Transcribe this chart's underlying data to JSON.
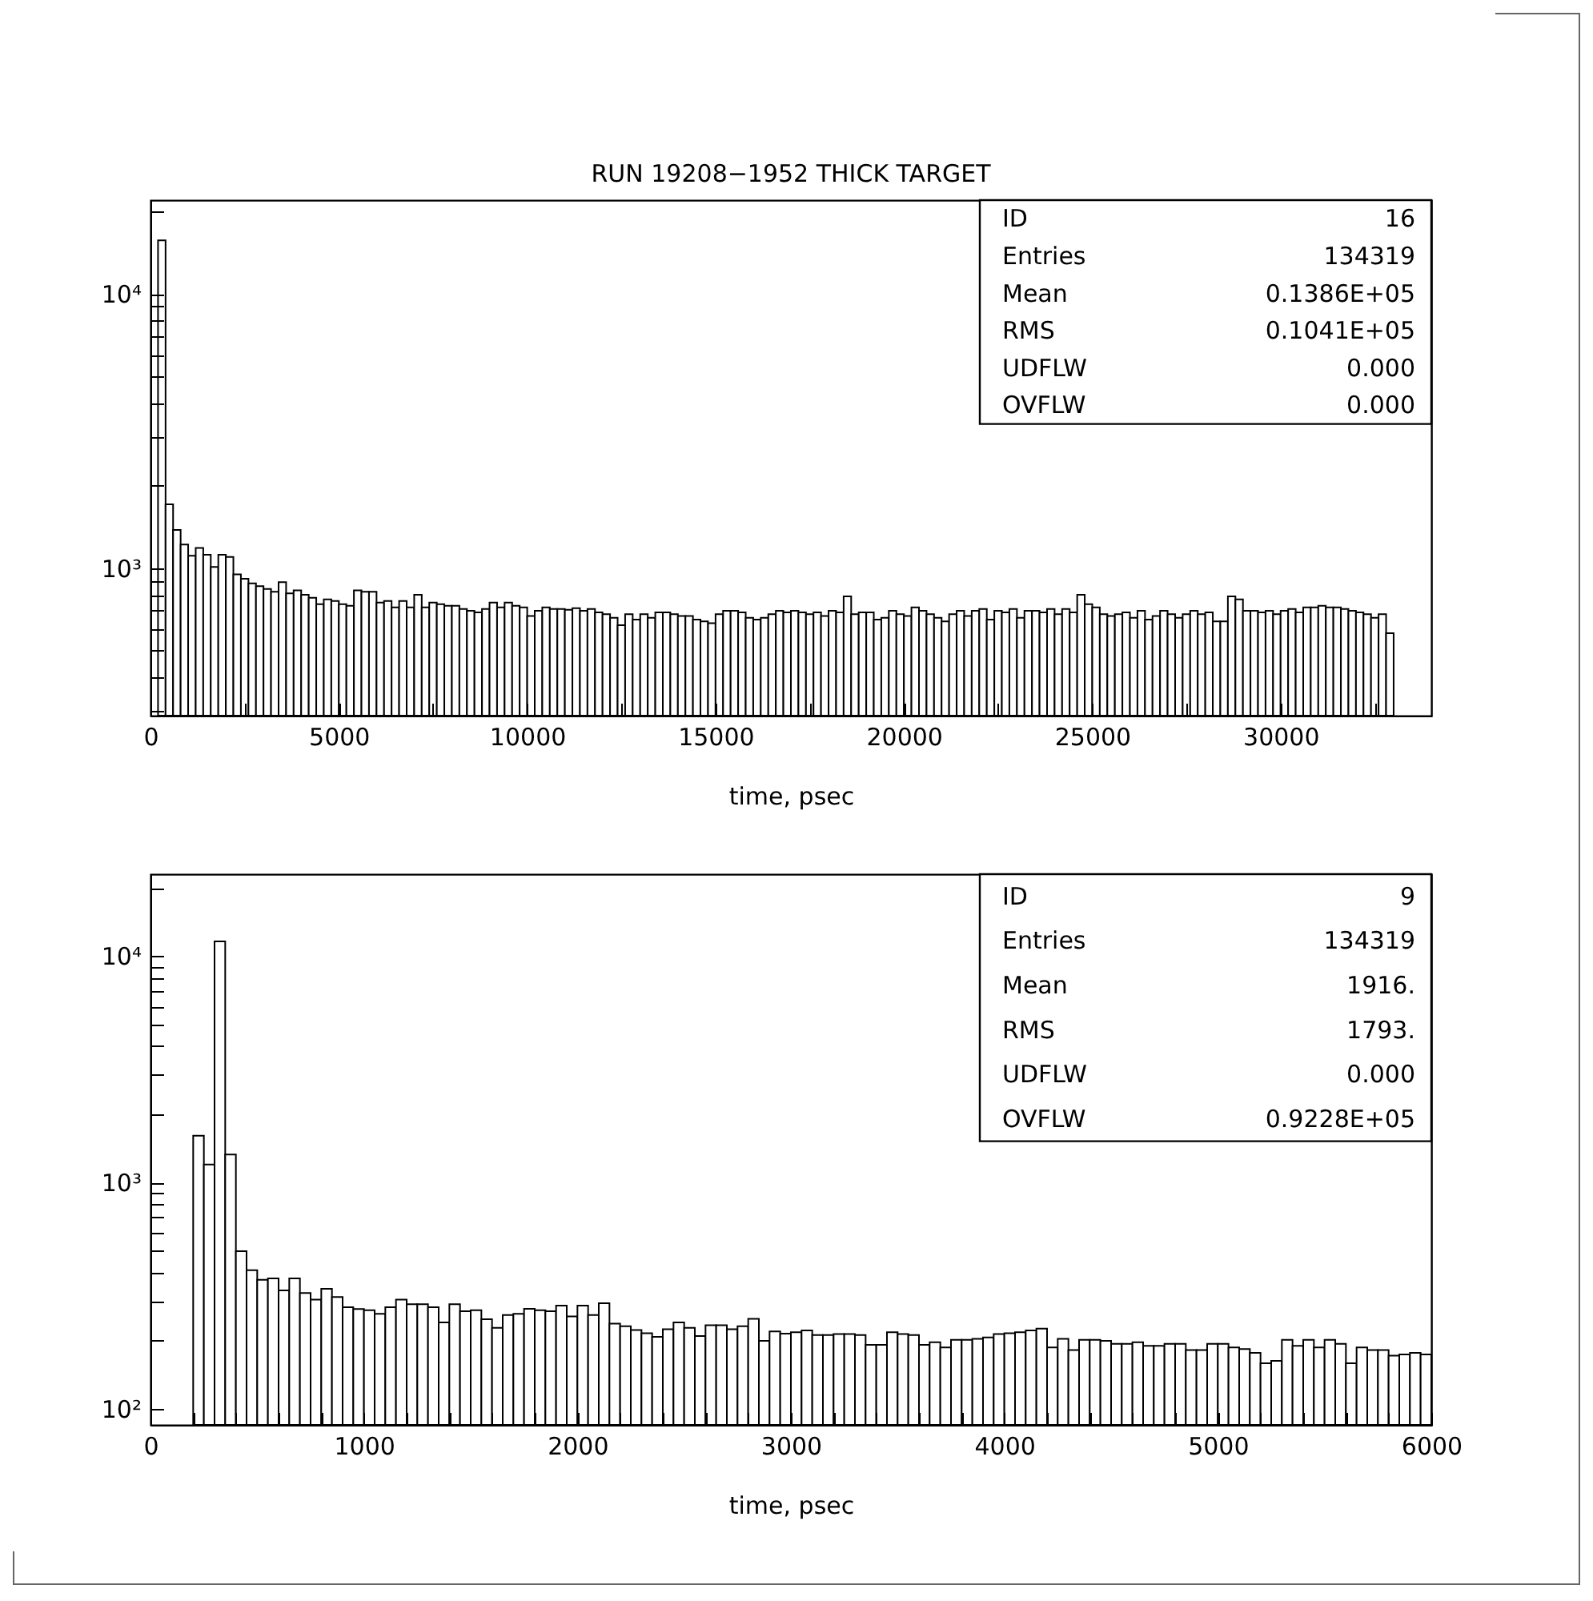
{
  "chart_data": [
    {
      "type": "histogram",
      "title": "RUN 19208−1952 THICK TARGET",
      "xlabel": "time, psec",
      "color": "#000000",
      "log": true,
      "xlim": [
        0,
        34000
      ],
      "xticks": [
        0,
        {
          "value": 2500,
          "label": null
        },
        5000,
        {
          "value": 7500,
          "label": null
        },
        10000,
        {
          "value": 12500,
          "label": null
        },
        15000,
        {
          "value": 17500,
          "label": null
        },
        20000,
        {
          "value": 22500,
          "label": null
        },
        25000,
        {
          "value": 27500,
          "label": null
        },
        30000,
        {
          "value": 32500,
          "label": null
        }
      ],
      "ylim": [
        290,
        22000
      ],
      "yticks": [
        {
          "value": 300,
          "label": null
        },
        {
          "value": 400,
          "label": null
        },
        {
          "value": 500,
          "label": null
        },
        {
          "value": 600,
          "label": null
        },
        {
          "value": 700,
          "label": null
        },
        {
          "value": 800,
          "label": null
        },
        {
          "value": 900,
          "label": null
        },
        {
          "value": 1000,
          "label": "10³"
        },
        {
          "value": 2000,
          "label": null
        },
        {
          "value": 3000,
          "label": null
        },
        {
          "value": 4000,
          "label": null
        },
        {
          "value": 5000,
          "label": null
        },
        {
          "value": 6000,
          "label": null
        },
        {
          "value": 7000,
          "label": null
        },
        {
          "value": 8000,
          "label": null
        },
        {
          "value": 9000,
          "label": null
        },
        {
          "value": 10000,
          "label": "10⁴"
        },
        {
          "value": 20000,
          "label": null
        }
      ],
      "annotations": [
        "ID 16",
        "Entries 134319",
        "Mean 0.1386E+05",
        "RMS 0.1041E+05",
        "UDFLW 0.000",
        "OVFLW 0.000"
      ],
      "bins": [
        0,
        200,
        400,
        600,
        800,
        1000,
        1200,
        1400,
        1600,
        1800,
        2000,
        2200,
        2400,
        2600,
        2800,
        3000,
        3200,
        3400,
        3600,
        3800,
        4000,
        4200,
        4400,
        4600,
        4800,
        5000,
        5200,
        5400,
        5600,
        5800,
        6000,
        6200,
        6400,
        6600,
        6800,
        7000,
        7200,
        7400,
        7600,
        7800,
        8000,
        8200,
        8400,
        8600,
        8800,
        9000,
        9200,
        9400,
        9600,
        9800,
        10000,
        10200,
        10400,
        10600,
        10800,
        11000,
        11200,
        11400,
        11600,
        11800,
        12000,
        12200,
        12400,
        12600,
        12800,
        13000,
        13200,
        13400,
        13600,
        13800,
        14000,
        14200,
        14400,
        14600,
        14800,
        15000,
        15200,
        15400,
        15600,
        15800,
        16000,
        16200,
        16400,
        16600,
        16800,
        17000,
        17200,
        17400,
        17600,
        17800,
        18000,
        18200,
        18400,
        18600,
        18800,
        19000,
        19200,
        19400,
        19600,
        19800,
        20000,
        20200,
        20400,
        20600,
        20800,
        21000,
        21200,
        21400,
        21600,
        21800,
        22000,
        22200,
        22400,
        22600,
        22800,
        23000,
        23200,
        23400,
        23600,
        23800,
        24000,
        24200,
        24400,
        24600,
        24800,
        25000,
        25200,
        25400,
        25600,
        25800,
        26000,
        26200,
        26400,
        26600,
        26800,
        27000,
        27200,
        27400,
        27600,
        27800,
        28000,
        28200,
        28400,
        28600,
        28800,
        29000,
        29200,
        29400,
        29600,
        29800,
        30000,
        30200,
        30400,
        30600,
        30800,
        31000,
        31200,
        31400,
        31600,
        31800,
        32000,
        32200,
        32400,
        32600,
        32800,
        33000
      ],
      "values": [
        null,
        15700,
        1710,
        1380,
        1220,
        1110,
        1185,
        1120,
        1010,
        1120,
        1100,
        950,
        915,
        880,
        860,
        840,
        820,
        890,
        810,
        830,
        800,
        780,
        740,
        770,
        760,
        740,
        730,
        830,
        820,
        820,
        750,
        760,
        720,
        760,
        720,
        800,
        720,
        750,
        740,
        730,
        730,
        710,
        700,
        690,
        710,
        750,
        720,
        750,
        730,
        720,
        670,
        700,
        720,
        710,
        710,
        705,
        715,
        700,
        710,
        690,
        680,
        660,
        620,
        680,
        650,
        680,
        660,
        690,
        690,
        680,
        670,
        670,
        650,
        640,
        630,
        680,
        700,
        700,
        690,
        660,
        650,
        660,
        680,
        700,
        690,
        700,
        690,
        680,
        690,
        670,
        700,
        690,
        790,
        680,
        690,
        690,
        650,
        660,
        700,
        680,
        670,
        720,
        700,
        680,
        660,
        640,
        680,
        700,
        670,
        700,
        710,
        650,
        700,
        690,
        710,
        660,
        700,
        700,
        690,
        710,
        680,
        710,
        690,
        800,
        740,
        720,
        680,
        670,
        680,
        690,
        660,
        700,
        650,
        670,
        700,
        680,
        660,
        680,
        700,
        680,
        690,
        640,
        640,
        790,
        770,
        700,
        700,
        690,
        700,
        680,
        700,
        710,
        690,
        720,
        720,
        730,
        720,
        720,
        710,
        700,
        690,
        680,
        660,
        680,
        580
      ]
    },
    {
      "type": "histogram",
      "xlabel": "time, psec",
      "color": "#000000",
      "log": true,
      "xlim": [
        0,
        6000
      ],
      "xticks": [
        0,
        {
          "value": 200,
          "label": null
        },
        {
          "value": 400,
          "label": null
        },
        {
          "value": 600,
          "label": null
        },
        {
          "value": 800,
          "label": null
        },
        1000,
        {
          "value": 1200,
          "label": null
        },
        {
          "value": 1400,
          "label": null
        },
        {
          "value": 1600,
          "label": null
        },
        {
          "value": 1800,
          "label": null
        },
        2000,
        {
          "value": 2200,
          "label": null
        },
        {
          "value": 2400,
          "label": null
        },
        {
          "value": 2600,
          "label": null
        },
        {
          "value": 2800,
          "label": null
        },
        3000,
        {
          "value": 3200,
          "label": null
        },
        {
          "value": 3400,
          "label": null
        },
        {
          "value": 3600,
          "label": null
        },
        {
          "value": 3800,
          "label": null
        },
        4000,
        {
          "value": 4200,
          "label": null
        },
        {
          "value": 4400,
          "label": null
        },
        {
          "value": 4600,
          "label": null
        },
        {
          "value": 4800,
          "label": null
        },
        5000,
        {
          "value": 5200,
          "label": null
        },
        {
          "value": 5400,
          "label": null
        },
        {
          "value": 5600,
          "label": null
        },
        {
          "value": 5800,
          "label": null
        },
        6000
      ],
      "ylim": [
        85,
        23000
      ],
      "yticks": [
        {
          "value": 100,
          "label": "10²"
        },
        {
          "value": 200,
          "label": null
        },
        {
          "value": 300,
          "label": null
        },
        {
          "value": 400,
          "label": null
        },
        {
          "value": 500,
          "label": null
        },
        {
          "value": 600,
          "label": null
        },
        {
          "value": 700,
          "label": null
        },
        {
          "value": 800,
          "label": null
        },
        {
          "value": 900,
          "label": null
        },
        {
          "value": 1000,
          "label": "10³"
        },
        {
          "value": 2000,
          "label": null
        },
        {
          "value": 3000,
          "label": null
        },
        {
          "value": 4000,
          "label": null
        },
        {
          "value": 5000,
          "label": null
        },
        {
          "value": 6000,
          "label": null
        },
        {
          "value": 7000,
          "label": null
        },
        {
          "value": 8000,
          "label": null
        },
        {
          "value": 9000,
          "label": null
        },
        {
          "value": 10000,
          "label": "10⁴"
        },
        {
          "value": 20000,
          "label": null
        }
      ],
      "annotations": [
        "ID 9",
        "Entries 134319",
        "Mean 1916.",
        "RMS 1793.",
        "UDFLW 0.000",
        "OVFLW 0.9228E+05"
      ],
      "bins": [
        0,
        50,
        100,
        150,
        200,
        250,
        300,
        350,
        400,
        450,
        500,
        550,
        600,
        650,
        700,
        750,
        800,
        850,
        900,
        950,
        1000,
        1050,
        1100,
        1150,
        1200,
        1250,
        1300,
        1350,
        1400,
        1450,
        1500,
        1550,
        1600,
        1650,
        1700,
        1750,
        1800,
        1850,
        1900,
        1950,
        2000,
        2050,
        2100,
        2150,
        2200,
        2250,
        2300,
        2350,
        2400,
        2450,
        2500,
        2550,
        2600,
        2650,
        2700,
        2750,
        2800,
        2850,
        2900,
        2950,
        3000,
        3050,
        3100,
        3150,
        3200,
        3250,
        3300,
        3350,
        3400,
        3450,
        3500,
        3550,
        3600,
        3650,
        3700,
        3750,
        3800,
        3850,
        3900,
        3950,
        4000,
        4050,
        4100,
        4150,
        4200,
        4250,
        4300,
        4350,
        4400,
        4450,
        4500,
        4550,
        4600,
        4650,
        4700,
        4750,
        4800,
        4850,
        4900,
        4950,
        5000,
        5050,
        5100,
        5150,
        5200,
        5250,
        5300,
        5350,
        5400,
        5450,
        5500,
        5550,
        5600,
        5650,
        5700,
        5750,
        5800,
        5850,
        5900,
        5950,
        6000
      ],
      "values": [
        null,
        null,
        null,
        null,
        1610,
        1200,
        11600,
        1330,
        497,
        410,
        372,
        377,
        334,
        377,
        325,
        304,
        339,
        312,
        281,
        276,
        273,
        263,
        281,
        304,
        290,
        290,
        281,
        241,
        290,
        270,
        273,
        249,
        228,
        260,
        263,
        277,
        273,
        270,
        286,
        256,
        286,
        260,
        293,
        238,
        232,
        223,
        216,
        208,
        225,
        241,
        228,
        210,
        234,
        234,
        225,
        232,
        250,
        200,
        220,
        215,
        218,
        222,
        212,
        212,
        214,
        214,
        212,
        192,
        192,
        218,
        214,
        212,
        192,
        197,
        187,
        202,
        202,
        204,
        207,
        214,
        216,
        218,
        222,
        226,
        187,
        204,
        182,
        202,
        202,
        200,
        194,
        194,
        197,
        190,
        190,
        194,
        194,
        182,
        182,
        194,
        194,
        187,
        184,
        177,
        159,
        163,
        202,
        190,
        202,
        187,
        202,
        194,
        159,
        187,
        182,
        182,
        172,
        174,
        177,
        174
      ]
    }
  ]
}
